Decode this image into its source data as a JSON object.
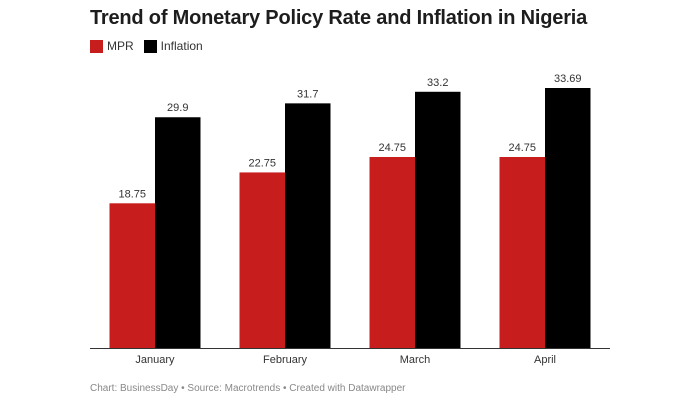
{
  "chart_data": {
    "type": "bar",
    "title": "Trend of Monetary Policy Rate and Inflation in Nigeria",
    "categories": [
      "January",
      "February",
      "March",
      "April"
    ],
    "series": [
      {
        "name": "MPR",
        "color": "#c71e1d",
        "values": [
          18.75,
          22.75,
          24.75,
          24.75
        ],
        "labels": [
          "18.75",
          "22.75",
          "24.75",
          "24.75"
        ]
      },
      {
        "name": "Inflation",
        "color": "#000000",
        "values": [
          29.9,
          31.7,
          33.2,
          33.69
        ],
        "labels": [
          "29.9",
          "31.7",
          "33.2",
          "33.69"
        ]
      }
    ],
    "ylim": [
      0,
      33.69
    ],
    "grid": false,
    "legend": "top-left",
    "footer": "Chart: BusinessDay • Source: Macrotrends • Created with Datawrapper"
  }
}
